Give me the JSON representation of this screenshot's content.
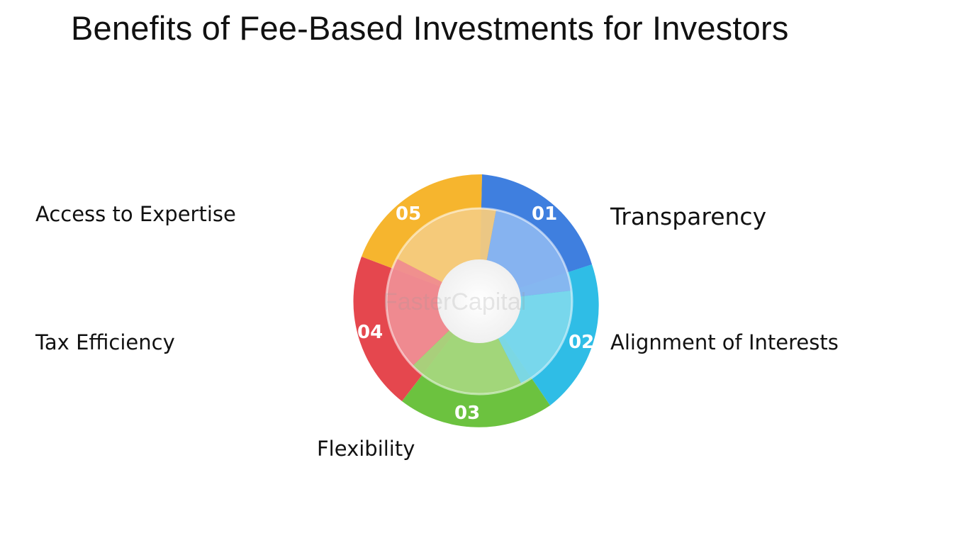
{
  "title": "Benefits of Fee-Based Investments for Investors",
  "watermark": "FasterCapital",
  "segments": [
    {
      "number": "01",
      "label": "Transparency",
      "color": "#3f7fdf",
      "inner_color": "#8ab6f0"
    },
    {
      "number": "02",
      "label": "Alignment of Interests",
      "color": "#2fbde6",
      "inner_color": "#7cd8ec"
    },
    {
      "number": "03",
      "label": "Flexibility",
      "color": "#6cc23f",
      "inner_color": "#a5d77d"
    },
    {
      "number": "04",
      "label": "Tax Efficiency",
      "color": "#e5474e",
      "inner_color": "#ef8e93"
    },
    {
      "number": "05",
      "label": "Access to Expertise",
      "color": "#f6b52e",
      "inner_color": "#f4cb7e"
    }
  ]
}
